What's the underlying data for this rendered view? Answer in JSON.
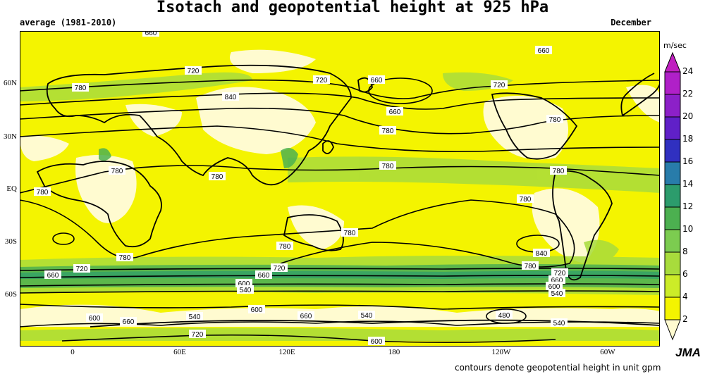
{
  "title": "Isotach and geopotential height at 925 hPa",
  "period": "average (1981-2010)",
  "month": "December",
  "units": "m/sec",
  "footnote": "contours denote geopotential height in unit gpm",
  "logo": "JMA",
  "lat_labels": [
    "60N",
    "30N",
    "EQ",
    "30S",
    "60S"
  ],
  "lon_labels": [
    "0",
    "60E",
    "120E",
    "180",
    "120W",
    "60W"
  ],
  "colorbar": {
    "levels": [
      "2",
      "4",
      "6",
      "8",
      "10",
      "12",
      "14",
      "16",
      "18",
      "20",
      "22",
      "24"
    ],
    "colors": [
      "#fffbd0",
      "#f4f400",
      "#ccec28",
      "#a8dc3c",
      "#7ccc50",
      "#4cb050",
      "#2c9c6c",
      "#287caa",
      "#3030c0",
      "#6020c8",
      "#8c20c8",
      "#b020c8",
      "#c020c0"
    ]
  },
  "contours": [
    {
      "value": "660"
    },
    {
      "value": "720"
    },
    {
      "value": "780"
    },
    {
      "value": "840"
    },
    {
      "value": "660"
    },
    {
      "value": "720"
    },
    {
      "value": "660"
    },
    {
      "value": "660"
    },
    {
      "value": "720"
    },
    {
      "value": "660"
    },
    {
      "value": "660"
    },
    {
      "value": "780"
    },
    {
      "value": "780"
    },
    {
      "value": "780"
    },
    {
      "value": "780"
    },
    {
      "value": "780"
    },
    {
      "value": "780"
    },
    {
      "value": "780"
    },
    {
      "value": "780"
    },
    {
      "value": "780"
    },
    {
      "value": "780"
    },
    {
      "value": "840"
    },
    {
      "value": "780"
    },
    {
      "value": "720"
    },
    {
      "value": "660"
    },
    {
      "value": "720"
    },
    {
      "value": "660"
    },
    {
      "value": "600"
    },
    {
      "value": "540"
    },
    {
      "value": "780"
    },
    {
      "value": "720"
    },
    {
      "value": "660"
    },
    {
      "value": "600"
    },
    {
      "value": "540"
    },
    {
      "value": "600"
    },
    {
      "value": "660"
    },
    {
      "value": "540"
    },
    {
      "value": "600"
    },
    {
      "value": "660"
    },
    {
      "value": "540"
    },
    {
      "value": "720"
    },
    {
      "value": "600"
    },
    {
      "value": "480"
    },
    {
      "value": "540"
    }
  ]
}
